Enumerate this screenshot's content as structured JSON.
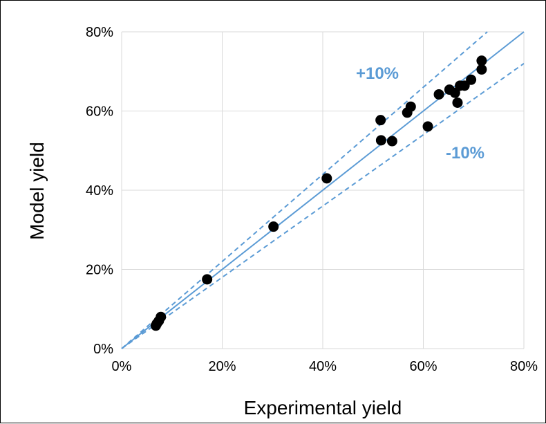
{
  "chart_data": {
    "type": "scatter",
    "title": "",
    "xlabel": "Experimental yield",
    "ylabel": "Model yield",
    "xlim": [
      0,
      80
    ],
    "ylim": [
      0,
      80
    ],
    "x_ticks": [
      0,
      20,
      40,
      60,
      80
    ],
    "y_ticks": [
      0,
      20,
      40,
      60,
      80
    ],
    "x_tick_labels": [
      "0%",
      "20%",
      "40%",
      "60%",
      "80%"
    ],
    "y_tick_labels": [
      "0%",
      "20%",
      "40%",
      "60%",
      "80%"
    ],
    "grid": true,
    "legend": "none",
    "points": [
      {
        "x": 6.8,
        "y": 5.8
      },
      {
        "x": 7.0,
        "y": 6.3
      },
      {
        "x": 7.4,
        "y": 7.0
      },
      {
        "x": 7.8,
        "y": 8.0
      },
      {
        "x": 17.0,
        "y": 17.5
      },
      {
        "x": 30.2,
        "y": 30.8
      },
      {
        "x": 40.8,
        "y": 43.0
      },
      {
        "x": 51.5,
        "y": 57.7
      },
      {
        "x": 51.6,
        "y": 52.6
      },
      {
        "x": 53.8,
        "y": 52.4
      },
      {
        "x": 56.8,
        "y": 59.6
      },
      {
        "x": 57.5,
        "y": 61.1
      },
      {
        "x": 60.9,
        "y": 56.1
      },
      {
        "x": 63.1,
        "y": 64.2
      },
      {
        "x": 65.2,
        "y": 65.4
      },
      {
        "x": 66.3,
        "y": 64.6
      },
      {
        "x": 66.8,
        "y": 62.1
      },
      {
        "x": 67.3,
        "y": 66.4
      },
      {
        "x": 68.2,
        "y": 66.4
      },
      {
        "x": 69.5,
        "y": 67.9
      },
      {
        "x": 71.6,
        "y": 70.5
      },
      {
        "x": 71.6,
        "y": 72.7
      }
    ],
    "reference_lines": [
      {
        "type": "parity",
        "slope": 1.0,
        "style": "solid"
      },
      {
        "type": "upper",
        "slope": 1.1,
        "style": "dashed",
        "label": "+10%"
      },
      {
        "type": "lower",
        "slope": 0.9,
        "style": "dashed",
        "label": "-10%"
      }
    ],
    "colors": {
      "points": "#000000",
      "lines": "#5b9bd5",
      "band_labels": "#5b9bd5",
      "grid": "#d9d9d9"
    }
  }
}
